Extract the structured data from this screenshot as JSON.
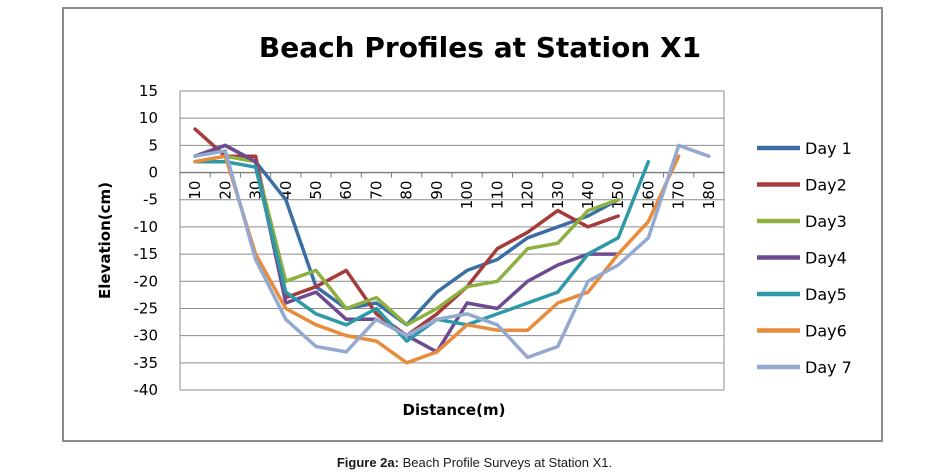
{
  "chart_data": {
    "type": "line",
    "title": "Beach Profiles at Station X1",
    "xlabel": "Distance(m)",
    "ylabel": "Elevation(cm)",
    "ylim": [
      -40,
      15
    ],
    "y_ticks": [
      15,
      10,
      5,
      0,
      -5,
      -10,
      -15,
      -20,
      -25,
      -30,
      -35,
      -40
    ],
    "x_ticks": [
      10,
      20,
      30,
      40,
      50,
      60,
      70,
      80,
      90,
      100,
      110,
      120,
      130,
      140,
      150,
      160,
      170,
      180
    ],
    "grid": true,
    "legend_position": "right",
    "series": [
      {
        "name": "Day 1",
        "color": "#3b6ea5",
        "x": [
          10,
          20,
          30,
          40,
          50,
          60,
          70,
          80,
          90,
          100,
          110,
          120,
          130,
          140,
          150
        ],
        "y": [
          3,
          5,
          2,
          -5,
          -21,
          -25,
          -24,
          -28,
          -22,
          -18,
          -16,
          -12,
          -10,
          -8,
          -5
        ]
      },
      {
        "name": "Day2",
        "color": "#a53b3b",
        "x": [
          10,
          20,
          30,
          40,
          50,
          60,
          70,
          80,
          90,
          100,
          110,
          120,
          130,
          140,
          150
        ],
        "y": [
          8,
          3,
          3,
          -23,
          -21,
          -18,
          -26,
          -30,
          -26,
          -21,
          -14,
          -11,
          -7,
          -10,
          -8
        ]
      },
      {
        "name": "Day3",
        "color": "#8db040",
        "x": [
          10,
          20,
          30,
          40,
          50,
          60,
          70,
          80,
          90,
          100,
          110,
          120,
          130,
          140,
          150
        ],
        "y": [
          2,
          3,
          2,
          -20,
          -18,
          -25,
          -23,
          -28,
          -25,
          -21,
          -20,
          -14,
          -13,
          -7,
          -5
        ]
      },
      {
        "name": "Day4",
        "color": "#6e4a91",
        "x": [
          10,
          20,
          30,
          40,
          50,
          60,
          70,
          80,
          90,
          100,
          110,
          120,
          130,
          140,
          150
        ],
        "y": [
          3,
          5,
          2,
          -24,
          -22,
          -27,
          -27,
          -30,
          -33,
          -24,
          -25,
          -20,
          -17,
          -15,
          -15
        ]
      },
      {
        "name": "Day5",
        "color": "#2e9aa8",
        "x": [
          10,
          20,
          30,
          40,
          50,
          60,
          70,
          80,
          90,
          100,
          110,
          120,
          130,
          140,
          150,
          160
        ],
        "y": [
          2,
          2,
          1,
          -22,
          -26,
          -28,
          -25,
          -31,
          -27,
          -28,
          -26,
          -24,
          -22,
          -15,
          -12,
          2
        ]
      },
      {
        "name": "Day6",
        "color": "#e88b3a",
        "x": [
          10,
          20,
          30,
          40,
          50,
          60,
          70,
          80,
          90,
          100,
          110,
          120,
          130,
          140,
          150,
          160,
          170
        ],
        "y": [
          2,
          3,
          -15,
          -25,
          -28,
          -30,
          -31,
          -35,
          -33,
          -28,
          -29,
          -29,
          -24,
          -22,
          -15,
          -9,
          3
        ]
      },
      {
        "name": "Day 7",
        "color": "#93a9cf",
        "x": [
          10,
          20,
          30,
          40,
          50,
          60,
          70,
          80,
          90,
          100,
          110,
          120,
          130,
          140,
          150,
          160,
          170,
          180
        ],
        "y": [
          3,
          4,
          -16,
          -27,
          -32,
          -33,
          -27,
          -30,
          -27,
          -26,
          -28,
          -34,
          -32,
          -20,
          -17,
          -12,
          5,
          3
        ]
      }
    ]
  },
  "caption": {
    "label": "Figure 2a:",
    "text": " Beach Profile Surveys at Station X1."
  }
}
